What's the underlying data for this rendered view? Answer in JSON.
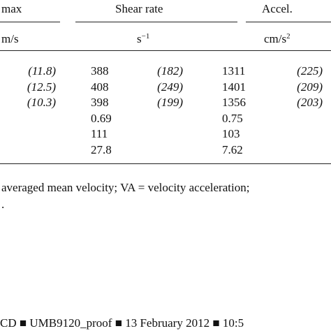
{
  "header": {
    "velocity": "max",
    "shear": "Shear rate",
    "accel": "Accel."
  },
  "units": {
    "velocity": "m/s",
    "shear_base": "s",
    "shear_exp": "−1",
    "accel_base": "cm/s",
    "accel_exp": "2"
  },
  "table": {
    "rows": [
      [
        "(11.8)",
        "388",
        "(182)",
        "1311",
        "(225)"
      ],
      [
        "(12.5)",
        "408",
        "(249)",
        "1401",
        "(209)"
      ],
      [
        "(10.3)",
        "398",
        "(199)",
        "1356",
        "(203)"
      ],
      [
        null,
        "0.69",
        null,
        "0.75",
        null
      ],
      [
        null,
        "111",
        null,
        "103",
        null
      ],
      [
        null,
        "27.8",
        null,
        "7.62",
        null
      ]
    ]
  },
  "footnote": {
    "line1": "averaged mean velocity; VA = velocity acceleration;",
    "line2": "."
  },
  "footer": "CD ■ UMB9120_proof ■ 13 February 2012 ■ 10:5"
}
